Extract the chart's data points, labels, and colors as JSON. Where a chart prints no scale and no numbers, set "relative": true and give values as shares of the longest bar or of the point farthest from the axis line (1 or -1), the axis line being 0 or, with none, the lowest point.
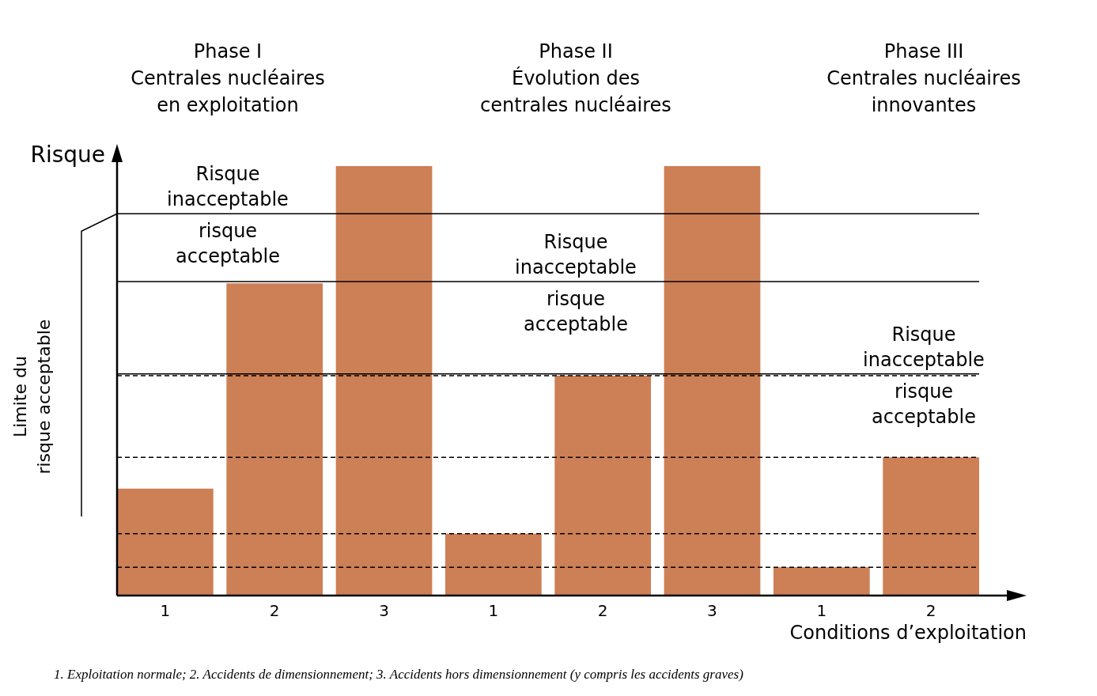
{
  "chart_data": {
    "type": "bar",
    "ylabel": "Risque",
    "xlabel": "Conditions d’exploitation",
    "categories": [
      "1",
      "2",
      "3",
      "1",
      "2",
      "3",
      "1",
      "2"
    ],
    "values": [
      0.249,
      0.727,
      1,
      0.144,
      0.512,
      1,
      0.066,
      0.322
    ],
    "color": "#cd7f55",
    "relative": true,
    "ref_lines": [
      {
        "axis": "y",
        "value": 0.889,
        "label": "Risque\ninacceptable\nrisque\nacceptable",
        "line_style": "solid",
        "color": "#000000"
      },
      {
        "axis": "y",
        "value": 0.731,
        "label": "Risque\ninacceptable\nrisque\nacceptable",
        "line_style": "solid",
        "color": "#000000"
      },
      {
        "axis": "y",
        "value": 0.516,
        "label": "Risque\ninacceptable\nrisque\nacceptable",
        "line_style": "solid",
        "color": "#000000"
      },
      {
        "axis": "y",
        "value": 0.512,
        "line_style": "dashed",
        "color": "#000000"
      },
      {
        "axis": "y",
        "value": 0.144,
        "line_style": "dashed",
        "color": "#000000"
      },
      {
        "axis": "y",
        "value": 0.322,
        "line_style": "dashed",
        "color": "#000000"
      },
      {
        "axis": "y",
        "value": 0.066,
        "line_style": "dashed",
        "color": "#000000"
      }
    ],
    "annotations": [
      "Phase I\nCentrales nucléaires\nen exploitation",
      "Phase II\nÉvolution des\ncentrales nucléaires",
      "Phase III\nCentrales nucléaires\ninnovantes",
      "Limite du\nrisque acceptable",
      "1. Exploitation normale; 2. Accidents de dimensionnement; 3. Accidents hors dimensionnement (y compris les accidents graves)"
    ]
  }
}
